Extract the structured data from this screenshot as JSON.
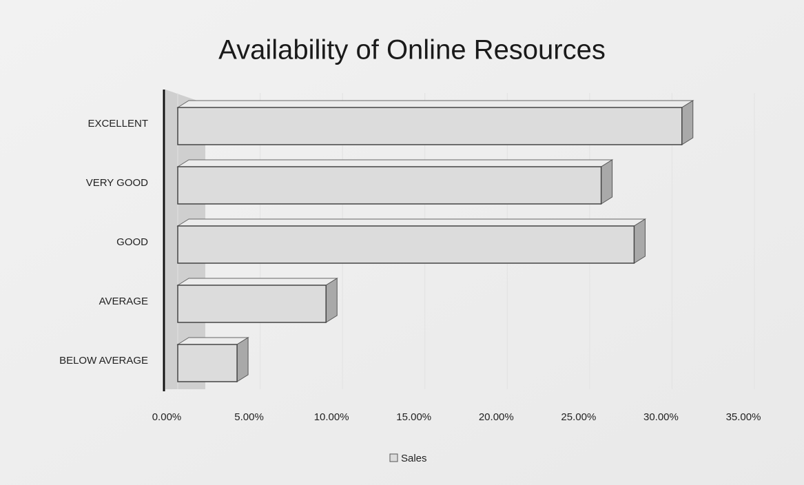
{
  "chart_data": {
    "type": "bar",
    "orientation": "horizontal",
    "title": "Availability of Online Resources",
    "categories": [
      "EXCELLENT",
      "VERY GOOD",
      "GOOD",
      "AVERAGE",
      "BELOW AVERAGE"
    ],
    "series": [
      {
        "name": "Sales",
        "color": "#dcdcdc",
        "values": [
          30.6,
          25.7,
          27.7,
          9.0,
          3.6
        ]
      }
    ],
    "xlim": [
      0,
      35
    ],
    "xticks": [
      {
        "value": 0,
        "label": "0.00%"
      },
      {
        "value": 5,
        "label": "5.00%"
      },
      {
        "value": 10,
        "label": "10.00%"
      },
      {
        "value": 15,
        "label": "15.00%"
      },
      {
        "value": 20,
        "label": "20.00%"
      },
      {
        "value": 25,
        "label": "25.00%"
      },
      {
        "value": 30,
        "label": "30.00%"
      },
      {
        "value": 35,
        "label": "35.00%"
      }
    ],
    "grid": true,
    "legend": "bottom"
  }
}
